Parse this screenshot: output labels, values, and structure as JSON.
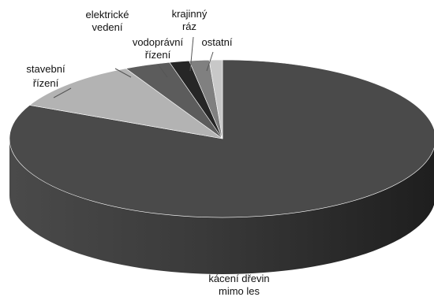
{
  "chart_data": {
    "type": "pie",
    "title": "",
    "style": "3d",
    "categories": [
      "kácení dřevin mimo les",
      "stavební řízení",
      "elektrické vedení",
      "vodoprávní řízení",
      "krajinný ráz",
      "ostatní"
    ],
    "values": [
      82.0,
      10.5,
      3.5,
      1.5,
      1.5,
      1.0
    ],
    "value_unit": "%",
    "label_lines": [
      [
        "kácení dřevin",
        "mimo les"
      ],
      [
        "stavební",
        "řízení"
      ],
      [
        "elektrické",
        "vedení"
      ],
      [
        "vodoprávní",
        "řízení"
      ],
      [
        "krajinný",
        "ráz"
      ],
      [
        "ostatní"
      ]
    ],
    "colors": [
      "#4a4a4a",
      "#b3b3b3",
      "#5c5c5c",
      "#262626",
      "#808080",
      "#c8c8c8"
    ]
  }
}
